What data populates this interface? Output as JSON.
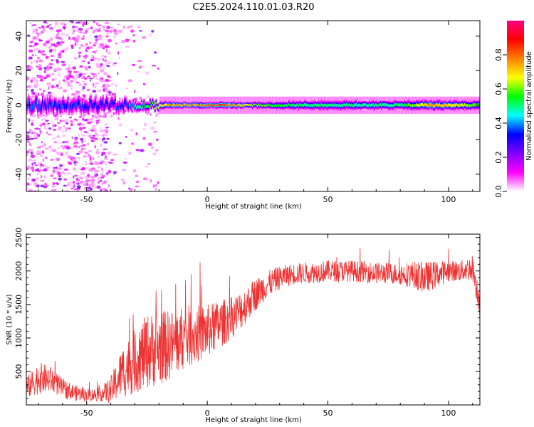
{
  "figure": {
    "title": "C2E5.2024.110.01.03.R20"
  },
  "chart_data": [
    {
      "type": "heatmap",
      "xlabel": "Height of straight line (km)",
      "ylabel": "Frequency (Hz)",
      "xlim": [
        -75,
        113
      ],
      "ylim": [
        -50,
        49
      ],
      "xticks": [
        -50,
        0,
        50,
        100
      ],
      "yticks": [
        -40,
        -20,
        0,
        20,
        40
      ],
      "colorbar": {
        "label": "Normalized spectral amplitude",
        "range": [
          0,
          1
        ],
        "ticks": [
          0.0,
          0.2,
          0.4,
          0.6,
          0.8
        ],
        "colormap": [
          "#ffffff",
          "#ff00ff",
          "#8000ff",
          "#0000ff",
          "#00ffff",
          "#00ff00",
          "#ffff00",
          "#ff8000",
          "#ff0000",
          "#ff0080"
        ]
      },
      "band": [
        {
          "x": -75,
          "half_width": 5,
          "amp": 0.35
        },
        {
          "x": -60,
          "half_width": 5,
          "amp": 0.35
        },
        {
          "x": -45,
          "half_width": 5,
          "amp": 0.3
        },
        {
          "x": -35,
          "half_width": 4,
          "amp": 0.35
        },
        {
          "x": -25,
          "half_width": 3,
          "amp": 0.55
        },
        {
          "x": -15,
          "half_width": 2,
          "amp": 0.75
        },
        {
          "x": -5,
          "half_width": 2,
          "amp": 0.75
        },
        {
          "x": 5,
          "half_width": 2,
          "amp": 0.85
        },
        {
          "x": 20,
          "half_width": 2,
          "amp": 0.6
        },
        {
          "x": 40,
          "half_width": 3,
          "amp": 0.5
        },
        {
          "x": 60,
          "half_width": 3,
          "amp": 0.5
        },
        {
          "x": 80,
          "half_width": 3,
          "amp": 0.5
        },
        {
          "x": 93,
          "half_width": 3,
          "amp": 0.75
        },
        {
          "x": 113,
          "half_width": 3,
          "amp": 0.55
        }
      ],
      "scatter_regions": [
        {
          "x_range": [
            -75,
            -40
          ],
          "density": "high"
        },
        {
          "x_range": [
            -40,
            -20
          ],
          "density": "low"
        }
      ]
    },
    {
      "type": "line",
      "xlabel": "Height of straight line (km)",
      "ylabel": "SNR (10 * v/v)",
      "xlim": [
        -75,
        113
      ],
      "ylim": [
        0,
        2550
      ],
      "xticks": [
        -50,
        0,
        50,
        100
      ],
      "yticks": [
        500,
        1000,
        1500,
        2000,
        2500
      ],
      "series": [
        {
          "color": "#ee3333",
          "x": [
            -75,
            -70,
            -65,
            -60,
            -55,
            -50,
            -45,
            -40,
            -35,
            -30,
            -25,
            -20,
            -15,
            -10,
            -5,
            0,
            5,
            10,
            15,
            20,
            25,
            30,
            35,
            40,
            45,
            50,
            55,
            60,
            65,
            70,
            75,
            80,
            85,
            90,
            95,
            100,
            105,
            110,
            113
          ],
          "y": [
            250,
            400,
            380,
            250,
            180,
            150,
            150,
            220,
            500,
            650,
            800,
            850,
            900,
            1000,
            1050,
            1100,
            1200,
            1300,
            1450,
            1650,
            1800,
            1900,
            1950,
            1970,
            1980,
            2000,
            2000,
            2000,
            1990,
            1970,
            1970,
            1950,
            1950,
            1900,
            1950,
            2000,
            2000,
            2050,
            1500
          ],
          "noise": [
            200,
            300,
            250,
            180,
            150,
            120,
            120,
            250,
            500,
            600,
            700,
            700,
            650,
            600,
            550,
            500,
            450,
            400,
            350,
            300,
            250,
            220,
            200,
            200,
            200,
            200,
            200,
            200,
            200,
            200,
            200,
            200,
            250,
            300,
            250,
            200,
            200,
            250,
            250
          ]
        }
      ]
    }
  ]
}
